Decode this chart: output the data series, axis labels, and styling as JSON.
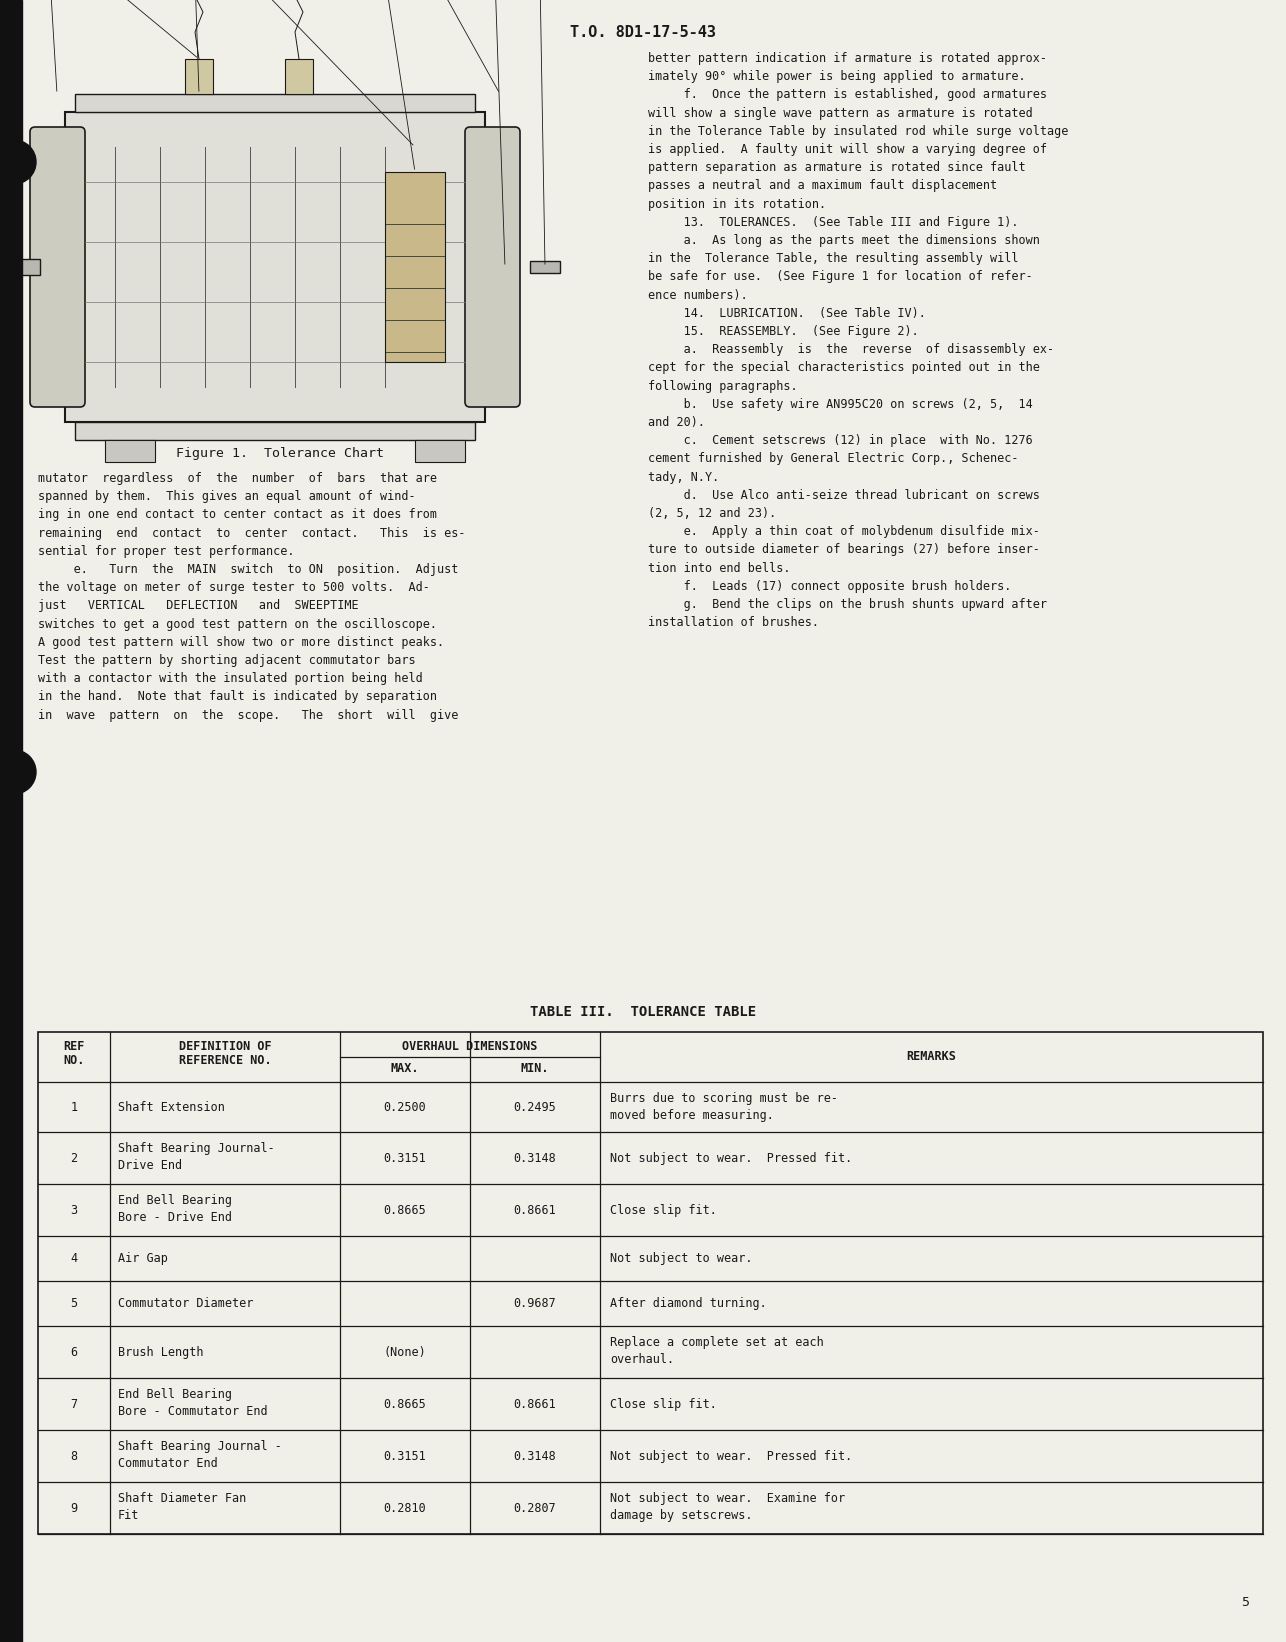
{
  "page_header": "T.O. 8D1-17-5-43",
  "page_number": "5",
  "figure_caption": "Figure 1.  Tolerance Chart",
  "left_column_text": [
    "mutator  regardless  of  the  number  of  bars  that are",
    "spanned by them.  This gives an equal amount of wind-",
    "ing in one end contact to center contact as it does from",
    "remaining  end  contact  to  center  contact.   This  is es-",
    "sential for proper test performance.",
    "     e.   Turn  the  MAIN  switch  to ON  position.  Adjust",
    "the voltage on meter of surge tester to 500 volts.  Ad-",
    "just   VERTICAL   DEFLECTION   and  SWEEPTIME",
    "switches to get a good test pattern on the oscilloscope.",
    "A good test pattern will show two or more distinct peaks.",
    "Test the pattern by shorting adjacent commutator bars",
    "with a contactor with the insulated portion being held",
    "in the hand.  Note that fault is indicated by separation",
    "in  wave  pattern  on  the  scope.   The  short  will  give"
  ],
  "right_column_text": [
    "better pattern indication if armature is rotated approx-",
    "imately 90° while power is being applied to armature.",
    "     f.  Once the pattern is established, good armatures",
    "will show a single wave pattern as armature is rotated",
    "in the Tolerance Table by insulated rod while surge voltage",
    "is applied.  A faulty unit will show a varying degree of",
    "pattern separation as armature is rotated since fault",
    "passes a neutral and a maximum fault displacement",
    "position in its rotation.",
    "     13.  TOLERANCES.  (See Table III and Figure 1).",
    "     a.  As long as the parts meet the dimensions shown",
    "in the  Tolerance Table, the resulting assembly will",
    "be safe for use.  (See Figure 1 for location of refer-",
    "ence numbers).",
    "     14.  LUBRICATION.  (See Table IV).",
    "     15.  REASSEMBLY.  (See Figure 2).",
    "     a.  Reassembly  is  the  reverse  of disassembly ex-",
    "cept for the special characteristics pointed out in the",
    "following paragraphs.",
    "     b.  Use safety wire AN995C20 on screws (2, 5,  14",
    "and 20).",
    "     c.  Cement setscrews (12) in place  with No. 1276",
    "cement furnished by General Electric Corp., Schenec-",
    "tady, N.Y.",
    "     d.  Use Alco anti-seize thread lubricant on screws",
    "(2, 5, 12 and 23).",
    "     e.  Apply a thin coat of molybdenum disulfide mix-",
    "ture to outside diameter of bearings (27) before inser-",
    "tion into end bells.",
    "     f.  Leads (17) connect opposite brush holders.",
    "     g.  Bend the clips on the brush shunts upward after",
    "installation of brushes."
  ],
  "table_title": "TABLE III.  TOLERANCE TABLE",
  "table_rows": [
    [
      "1",
      "Shaft Extension",
      "0.2500",
      "0.2495",
      "Burrs due to scoring must be re-\nmoved before measuring."
    ],
    [
      "2",
      "Shaft Bearing Journal-\nDrive End",
      "0.3151",
      "0.3148",
      "Not subject to wear.  Pressed fit."
    ],
    [
      "3",
      "End Bell Bearing\nBore - Drive End",
      "0.8665",
      "0.8661",
      "Close slip fit."
    ],
    [
      "4",
      "Air Gap",
      "",
      "",
      "Not subject to wear."
    ],
    [
      "5",
      "Commutator Diameter",
      "",
      "0.9687",
      "After diamond turning."
    ],
    [
      "6",
      "Brush Length",
      "(None)",
      "",
      "Replace a complete set at each\noverhaul."
    ],
    [
      "7",
      "End Bell Bearing\nBore - Commutator End",
      "0.8665",
      "0.8661",
      "Close slip fit."
    ],
    [
      "8",
      "Shaft Bearing Journal -\nCommutator End",
      "0.3151",
      "0.3148",
      "Not subject to wear.  Pressed fit."
    ],
    [
      "9",
      "Shaft Diameter Fan\nFit",
      "0.2810",
      "0.2807",
      "Not subject to wear.  Examine for\ndamage by setscrews."
    ]
  ],
  "bg_color": "#f0efe8",
  "text_color": "#1a1a1a",
  "font_size_body": 8.5,
  "font_size_title": 10.0
}
